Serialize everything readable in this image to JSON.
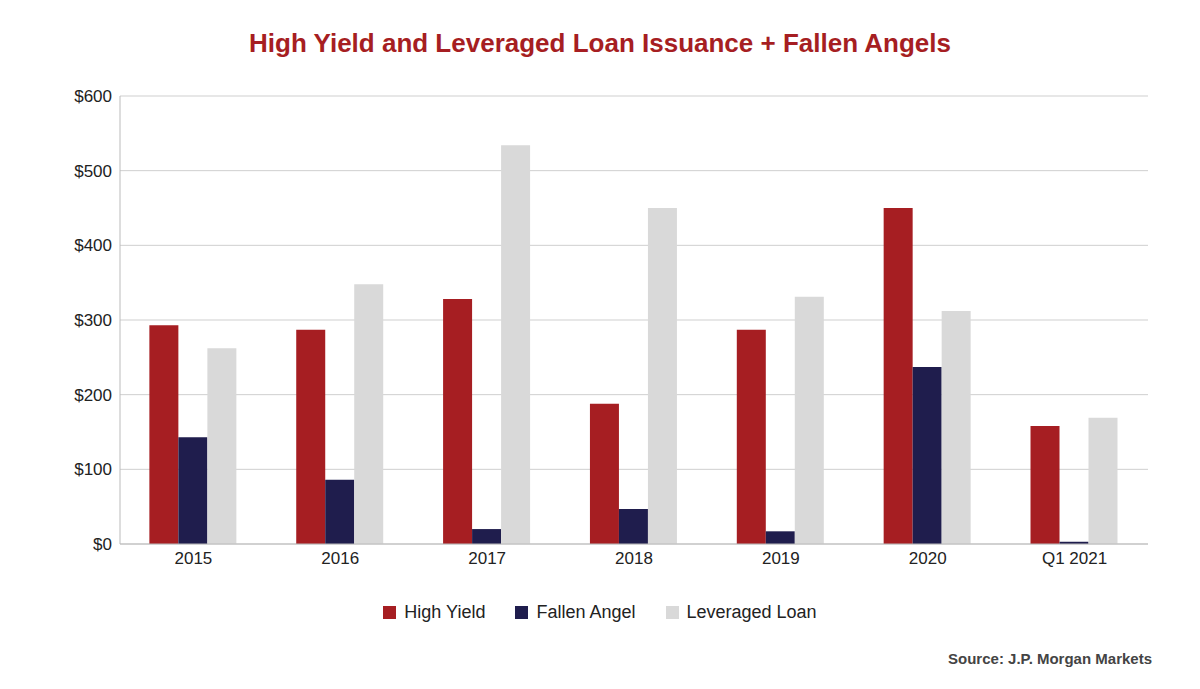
{
  "chart_data": {
    "type": "bar",
    "title": "High Yield and Leveraged Loan Issuance + Fallen Angels",
    "source": "Source: J.P. Morgan Markets",
    "categories": [
      "2015",
      "2016",
      "2017",
      "2018",
      "2019",
      "2020",
      "Q1 2021"
    ],
    "series": [
      {
        "name": "High Yield",
        "color": "#a61e22",
        "values": [
          293,
          287,
          328,
          188,
          287,
          450,
          158
        ]
      },
      {
        "name": "Fallen Angel",
        "color": "#1f1d4d",
        "values": [
          143,
          86,
          20,
          47,
          17,
          237,
          3
        ]
      },
      {
        "name": "Leveraged Loan",
        "color": "#d9d9d9",
        "values": [
          262,
          348,
          534,
          450,
          331,
          312,
          169
        ]
      }
    ],
    "ylim": [
      0,
      600
    ],
    "yticks": [
      {
        "value": 0,
        "label": "$0"
      },
      {
        "value": 100,
        "label": "$100"
      },
      {
        "value": 200,
        "label": "$200"
      },
      {
        "value": 300,
        "label": "$300"
      },
      {
        "value": 400,
        "label": "$400"
      },
      {
        "value": 500,
        "label": "$500"
      },
      {
        "value": 600,
        "label": "$600"
      }
    ],
    "grid": true,
    "legend": "bottom"
  }
}
